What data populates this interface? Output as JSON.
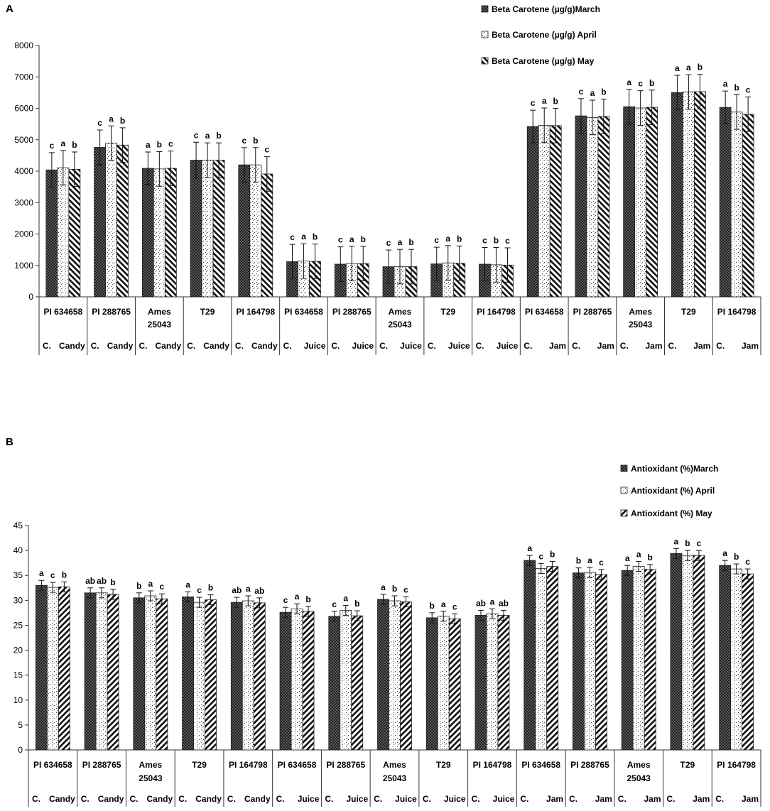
{
  "chart_data": [
    {
      "panel": "A",
      "type": "bar",
      "ylim": [
        0,
        8000
      ],
      "yticks": [
        0,
        1000,
        2000,
        3000,
        4000,
        5000,
        6000,
        7000,
        8000
      ],
      "categories": [
        {
          "name": "PI 634658",
          "line2": "",
          "prefix": "C.",
          "product": "Candy"
        },
        {
          "name": "PI 288765",
          "line2": "",
          "prefix": "C.",
          "product": "Candy"
        },
        {
          "name": "Ames",
          "line2": "25043",
          "prefix": "C.",
          "product": "Candy"
        },
        {
          "name": "T29",
          "line2": "",
          "prefix": "C.",
          "product": "Candy"
        },
        {
          "name": "PI 164798",
          "line2": "",
          "prefix": "C.",
          "product": "Candy"
        },
        {
          "name": "PI 634658",
          "line2": "",
          "prefix": "C.",
          "product": "Juice"
        },
        {
          "name": "PI 288765",
          "line2": "",
          "prefix": "C.",
          "product": "Juice"
        },
        {
          "name": "Ames",
          "line2": "25043",
          "prefix": "C.",
          "product": "Juice"
        },
        {
          "name": "T29",
          "line2": "",
          "prefix": "C.",
          "product": "Juice"
        },
        {
          "name": "PI 164798",
          "line2": "",
          "prefix": "C.",
          "product": "Juice"
        },
        {
          "name": "PI 634658",
          "line2": "",
          "prefix": "C.",
          "product": "Jam"
        },
        {
          "name": "PI 288765",
          "line2": "",
          "prefix": "C.",
          "product": "Jam"
        },
        {
          "name": "Ames",
          "line2": "25043",
          "prefix": "C.",
          "product": "Jam"
        },
        {
          "name": "T29",
          "line2": "",
          "prefix": "C.",
          "product": "Jam"
        },
        {
          "name": "PI 164798",
          "line2": "",
          "prefix": "C.",
          "product": "Jam"
        }
      ],
      "series": [
        {
          "name": "Beta Carotene (µg/g)March",
          "pattern": "cross",
          "values": [
            4040,
            4760,
            4090,
            4350,
            4200,
            1120,
            1040,
            960,
            1050,
            1040,
            5420,
            5760,
            6050,
            6500,
            6030
          ],
          "errors": [
            550,
            550,
            520,
            570,
            550,
            550,
            550,
            530,
            530,
            530,
            520,
            550,
            550,
            550,
            520
          ],
          "letters": [
            "c",
            "c",
            "a",
            "c",
            "c",
            "c",
            "c",
            "c",
            "c",
            "c",
            "c",
            "c",
            "a",
            "a",
            "a"
          ]
        },
        {
          "name": "Beta Carotene (µg/g) April",
          "pattern": "dots",
          "values": [
            4110,
            4890,
            4070,
            4350,
            4200,
            1140,
            1060,
            960,
            1080,
            1020,
            5460,
            5710,
            6010,
            6520,
            5880
          ],
          "errors": [
            550,
            550,
            550,
            550,
            550,
            550,
            550,
            550,
            550,
            550,
            550,
            550,
            550,
            550,
            550
          ],
          "letters": [
            "a",
            "a",
            "b",
            "a",
            "b",
            "a",
            "a",
            "a",
            "a",
            "b",
            "a",
            "a",
            "c",
            "a",
            "b"
          ]
        },
        {
          "name": "Beta Carotene (µg/g) May",
          "pattern": "back",
          "values": [
            4060,
            4830,
            4090,
            4350,
            3910,
            1130,
            1060,
            960,
            1070,
            1010,
            5450,
            5740,
            6030,
            6530,
            5810
          ],
          "errors": [
            550,
            550,
            550,
            550,
            550,
            550,
            550,
            550,
            550,
            550,
            550,
            550,
            550,
            550,
            550
          ],
          "letters": [
            "b",
            "b",
            "c",
            "b",
            "c",
            "b",
            "b",
            "b",
            "b",
            "c",
            "b",
            "b",
            "b",
            "b",
            "c"
          ]
        }
      ]
    },
    {
      "panel": "B",
      "type": "bar",
      "ylim": [
        0,
        45
      ],
      "yticks": [
        0,
        5,
        10,
        15,
        20,
        25,
        30,
        35,
        40,
        45
      ],
      "categories": [
        {
          "name": "PI 634658",
          "line2": "",
          "prefix": "C.",
          "product": "Candy"
        },
        {
          "name": "PI 288765",
          "line2": "",
          "prefix": "C.",
          "product": "Candy"
        },
        {
          "name": "Ames",
          "line2": "25043",
          "prefix": "C.",
          "product": "Candy"
        },
        {
          "name": "T29",
          "line2": "",
          "prefix": "C.",
          "product": "Candy"
        },
        {
          "name": "PI 164798",
          "line2": "",
          "prefix": "C.",
          "product": "Candy"
        },
        {
          "name": "PI 634658",
          "line2": "",
          "prefix": "C.",
          "product": "Juice"
        },
        {
          "name": "PI 288765",
          "line2": "",
          "prefix": "C.",
          "product": "Juice"
        },
        {
          "name": "Ames",
          "line2": "25043",
          "prefix": "C.",
          "product": "Juice"
        },
        {
          "name": "T29",
          "line2": "",
          "prefix": "C.",
          "product": "Juice"
        },
        {
          "name": "PI 164798",
          "line2": "",
          "prefix": "C.",
          "product": "Juice"
        },
        {
          "name": "PI 634658",
          "line2": "",
          "prefix": "C.",
          "product": "Jam"
        },
        {
          "name": "PI 288765",
          "line2": "",
          "prefix": "C.",
          "product": "Jam"
        },
        {
          "name": "Ames",
          "line2": "25043",
          "prefix": "C.",
          "product": "Jam"
        },
        {
          "name": "T29",
          "line2": "",
          "prefix": "C.",
          "product": "Jam"
        },
        {
          "name": "PI 164798",
          "line2": "",
          "prefix": "C.",
          "product": "Jam"
        }
      ],
      "series": [
        {
          "name": "Antioxidant (%)March",
          "pattern": "cross",
          "values": [
            33.0,
            31.5,
            30.5,
            30.7,
            29.6,
            27.6,
            26.8,
            30.2,
            26.5,
            27.0,
            38.0,
            35.5,
            36.0,
            39.4,
            37.0
          ],
          "errors": [
            1.0,
            1.0,
            1.0,
            1.0,
            1.0,
            1.0,
            1.0,
            1.0,
            1.0,
            1.0,
            1.0,
            1.0,
            1.0,
            1.0,
            1.0
          ],
          "letters": [
            "a",
            "ab",
            "b",
            "a",
            "ab",
            "c",
            "c",
            "a",
            "b",
            "ab",
            "a",
            "b",
            "a",
            "a",
            "a"
          ]
        },
        {
          "name": "Antioxidant (%) April",
          "pattern": "dots",
          "values": [
            32.6,
            31.5,
            30.9,
            29.6,
            29.9,
            28.3,
            28.0,
            29.9,
            26.8,
            27.3,
            36.4,
            35.6,
            36.8,
            39.0,
            36.3
          ],
          "errors": [
            1.0,
            1.0,
            1.0,
            1.0,
            1.0,
            1.0,
            1.0,
            1.0,
            1.0,
            1.0,
            1.0,
            1.0,
            1.0,
            1.0,
            1.0
          ],
          "letters": [
            "c",
            "ab",
            "a",
            "c",
            "a",
            "a",
            "a",
            "b",
            "a",
            "a",
            "c",
            "a",
            "a",
            "b",
            "b"
          ]
        },
        {
          "name": "Antioxidant (%) May",
          "pattern": "fwd",
          "values": [
            32.7,
            31.2,
            30.3,
            30.1,
            29.5,
            27.8,
            26.9,
            29.7,
            26.3,
            27.0,
            36.8,
            35.2,
            36.2,
            39.0,
            35.3
          ],
          "errors": [
            1.0,
            1.0,
            1.0,
            1.0,
            1.0,
            1.0,
            1.0,
            1.0,
            1.0,
            1.0,
            1.0,
            1.0,
            1.0,
            1.0,
            1.0
          ],
          "letters": [
            "b",
            "b",
            "c",
            "b",
            "ab",
            "b",
            "b",
            "c",
            "c",
            "ab",
            "b",
            "c",
            "b",
            "c",
            "c"
          ]
        }
      ]
    }
  ]
}
